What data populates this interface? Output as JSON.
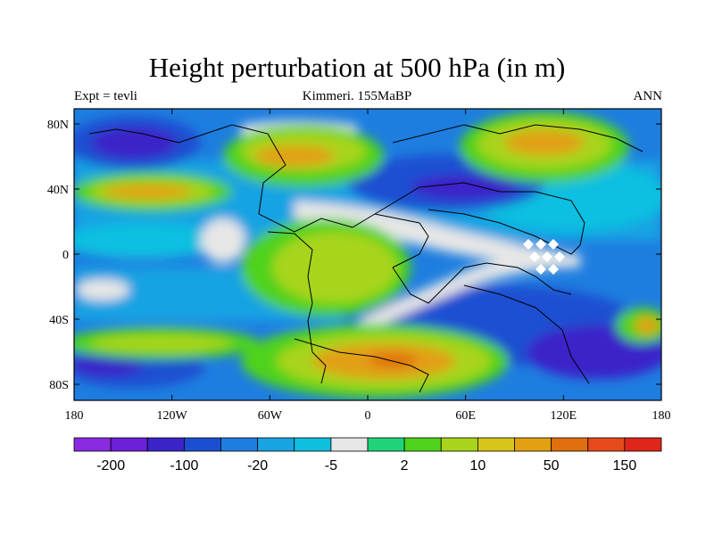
{
  "title": "Height perturbation at 500 hPa (in m)",
  "subtitle_left": "Expt = tevli",
  "subtitle_center": "Kimmeri. 155MaBP",
  "subtitle_right": "ANN",
  "map": {
    "lat_ticks": [
      "80N",
      "40N",
      "0",
      "40S",
      "80S"
    ],
    "lon_ticks": [
      "180",
      "120W",
      "60W",
      "0",
      "60E",
      "120E",
      "180"
    ]
  },
  "colorbar": {
    "colors": [
      "#8a2be2",
      "#6a1fd8",
      "#3a24c9",
      "#1b4fd1",
      "#1e7ee0",
      "#18a3e3",
      "#0fbfe0",
      "#e6e6e6",
      "#1fd37a",
      "#4fd21b",
      "#a8d41c",
      "#d9c41a",
      "#e2a012",
      "#e0700e",
      "#e64a1a",
      "#e0261a"
    ],
    "labels": [
      "-200",
      "-100",
      "-20",
      "-5",
      "2",
      "10",
      "50",
      "150"
    ]
  }
}
